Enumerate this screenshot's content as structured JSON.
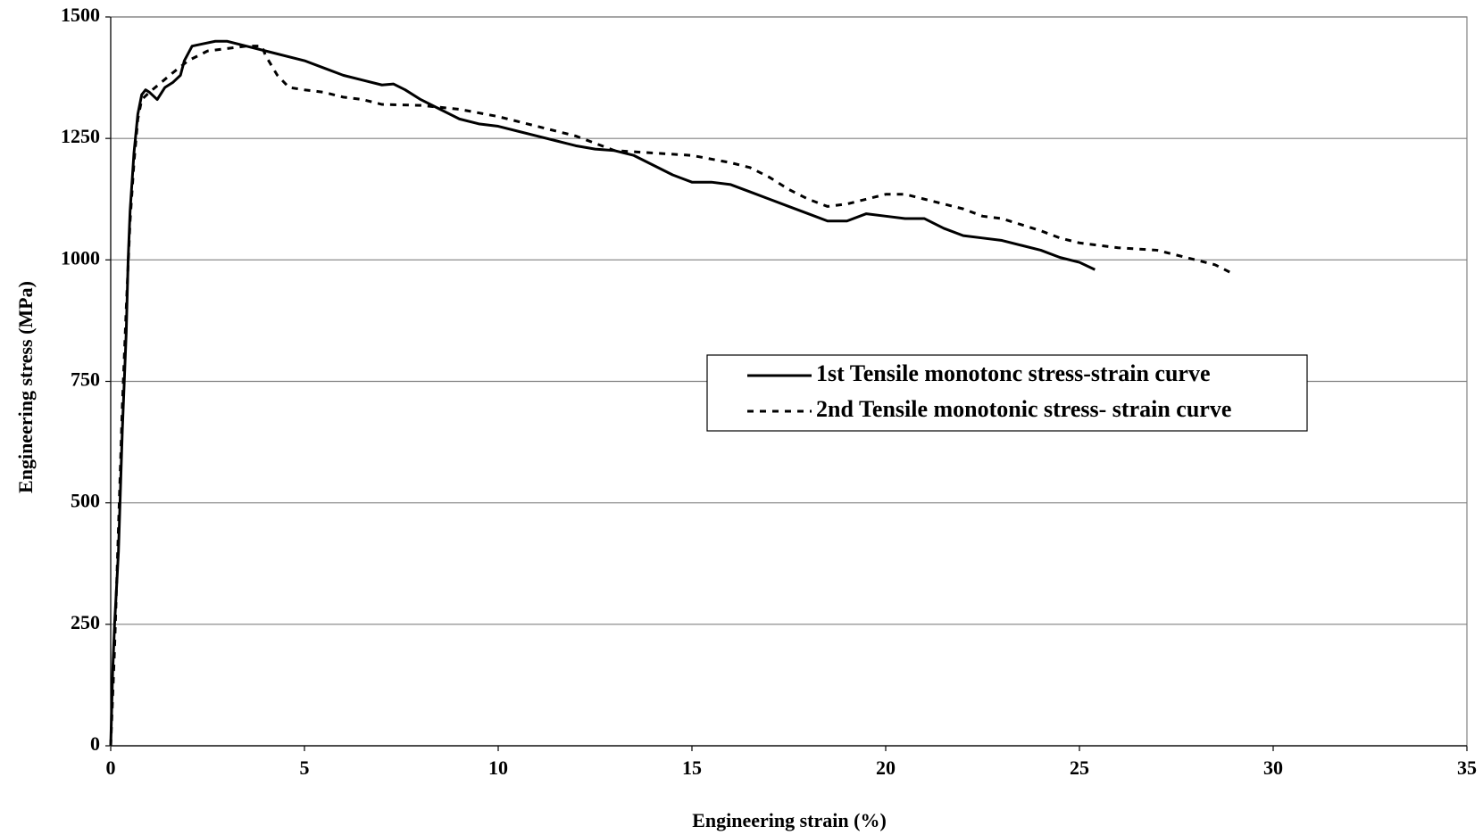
{
  "chart_data": {
    "type": "line",
    "x_label": "Engineering strain (%)",
    "y_label": "Engineering stress (MPa)",
    "xlim": [
      0,
      35
    ],
    "xticks": [
      0,
      5,
      10,
      15,
      20,
      25,
      30,
      35
    ],
    "ylim": [
      0,
      1500
    ],
    "yticks": [
      0,
      250,
      500,
      750,
      1000,
      1250,
      1500
    ],
    "grid": true,
    "legend": "center-right",
    "series": [
      {
        "name": "1st Tensile monotonc stress-strain curve",
        "color": "#000000",
        "dashed": false,
        "x": [
          0,
          0.05,
          0.1,
          0.2,
          0.3,
          0.4,
          0.45,
          0.5,
          0.6,
          0.7,
          0.8,
          0.9,
          1.0,
          1.2,
          1.4,
          1.6,
          1.8,
          1.9,
          2.1,
          2.4,
          2.7,
          3.0,
          3.5,
          4.0,
          5.0,
          5.5,
          6.0,
          6.5,
          7.0,
          7.3,
          7.6,
          8.0,
          8.5,
          9.0,
          9.5,
          10.0,
          10.5,
          11.0,
          11.5,
          12.0,
          12.5,
          13.0,
          13.5,
          14.0,
          14.5,
          15.0,
          15.5,
          16.0,
          16.5,
          17.0,
          17.5,
          18.0,
          18.5,
          19.0,
          19.5,
          20.0,
          20.5,
          21.0,
          21.5,
          22.0,
          22.5,
          23.0,
          23.5,
          24.0,
          24.5,
          25.0,
          25.4
        ],
        "values": [
          0,
          150,
          250,
          400,
          650,
          850,
          1000,
          1100,
          1220,
          1300,
          1340,
          1350,
          1345,
          1330,
          1355,
          1365,
          1380,
          1410,
          1440,
          1445,
          1450,
          1450,
          1440,
          1430,
          1410,
          1395,
          1380,
          1370,
          1360,
          1362,
          1350,
          1330,
          1310,
          1290,
          1280,
          1275,
          1265,
          1255,
          1245,
          1235,
          1228,
          1225,
          1215,
          1195,
          1175,
          1160,
          1160,
          1155,
          1140,
          1125,
          1110,
          1095,
          1080,
          1080,
          1095,
          1090,
          1085,
          1085,
          1065,
          1050,
          1045,
          1040,
          1030,
          1020,
          1005,
          995,
          980
        ]
      },
      {
        "name": "2nd Tensile monotonic stress- strain curve",
        "color": "#000000",
        "dashed": true,
        "x": [
          0,
          0.1,
          0.2,
          0.3,
          0.4,
          0.5,
          0.6,
          0.7,
          0.8,
          1.0,
          1.3,
          1.6,
          2.0,
          2.5,
          3.0,
          3.5,
          3.9,
          4.0,
          4.3,
          4.6,
          5.0,
          5.5,
          6.0,
          6.5,
          7.0,
          8.0,
          9.0,
          10.0,
          11.0,
          12.0,
          12.5,
          13.0,
          14.0,
          15.0,
          16.0,
          16.5,
          17.0,
          17.5,
          18.0,
          18.5,
          19.0,
          19.5,
          20.0,
          20.5,
          21.0,
          22.0,
          22.5,
          23.0,
          24.0,
          24.5,
          25.0,
          25.5,
          26.0,
          27.0,
          28.0,
          28.5,
          29.0
        ],
        "values": [
          0,
          200,
          450,
          700,
          900,
          1080,
          1200,
          1290,
          1330,
          1345,
          1365,
          1385,
          1410,
          1430,
          1435,
          1440,
          1440,
          1420,
          1380,
          1355,
          1350,
          1345,
          1335,
          1330,
          1320,
          1318,
          1310,
          1295,
          1275,
          1255,
          1240,
          1225,
          1220,
          1215,
          1200,
          1190,
          1170,
          1145,
          1125,
          1110,
          1115,
          1125,
          1135,
          1135,
          1125,
          1105,
          1090,
          1085,
          1060,
          1045,
          1035,
          1030,
          1025,
          1020,
          1000,
          990,
          970
        ]
      }
    ]
  }
}
